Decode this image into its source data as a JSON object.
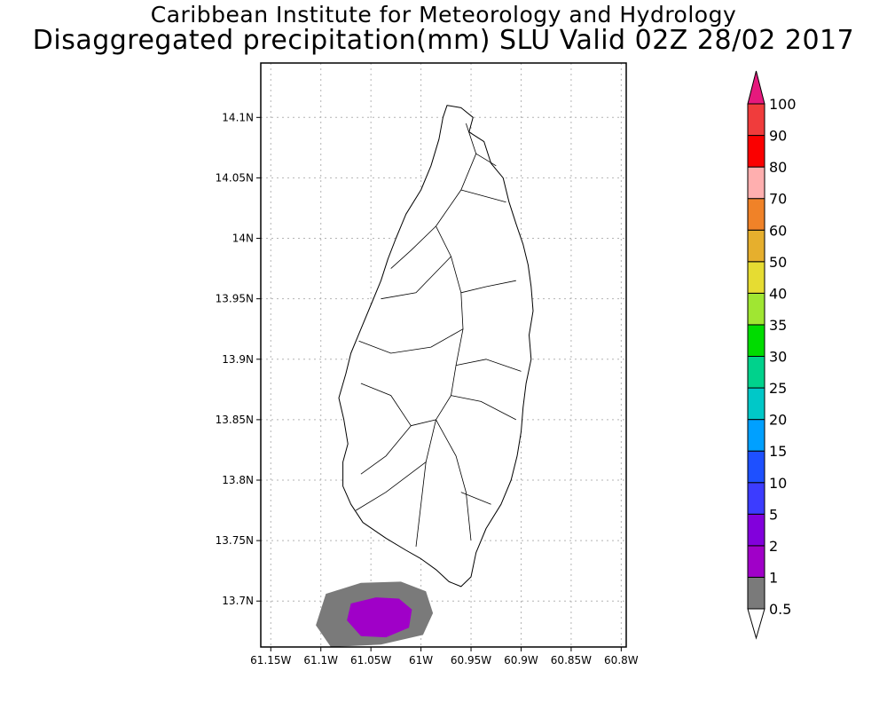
{
  "header": {
    "title_line1": "Caribbean Institute for Meteorology and Hydrology",
    "title_line2": "Disaggregated precipitation(mm) SLU Valid 02Z 28/02 2017"
  },
  "map": {
    "lon_range": [
      -61.16,
      -60.795
    ],
    "lat_range": [
      13.662,
      14.145
    ],
    "lat_ticks": [
      {
        "value": 14.1,
        "label": "14.1N"
      },
      {
        "value": 14.05,
        "label": "14.05N"
      },
      {
        "value": 14.0,
        "label": "14N"
      },
      {
        "value": 13.95,
        "label": "13.95N"
      },
      {
        "value": 13.9,
        "label": "13.9N"
      },
      {
        "value": 13.85,
        "label": "13.85N"
      },
      {
        "value": 13.8,
        "label": "13.8N"
      },
      {
        "value": 13.75,
        "label": "13.75N"
      },
      {
        "value": 13.7,
        "label": "13.7N"
      }
    ],
    "lon_ticks": [
      {
        "value": -61.15,
        "label": "61.15W"
      },
      {
        "value": -61.1,
        "label": "61.1W"
      },
      {
        "value": -61.05,
        "label": "61.05W"
      },
      {
        "value": -61.0,
        "label": "61W"
      },
      {
        "value": -60.95,
        "label": "60.95W"
      },
      {
        "value": -60.9,
        "label": "60.9W"
      },
      {
        "value": -60.85,
        "label": "60.85W"
      },
      {
        "value": -60.8,
        "label": "60.8W"
      }
    ],
    "grid": "dotted",
    "island_outline": [
      [
        -60.974,
        14.11
      ],
      [
        -60.96,
        14.108
      ],
      [
        -60.948,
        14.1
      ],
      [
        -60.952,
        14.088
      ],
      [
        -60.937,
        14.08
      ],
      [
        -60.93,
        14.062
      ],
      [
        -60.918,
        14.05
      ],
      [
        -60.912,
        14.03
      ],
      [
        -60.905,
        14.012
      ],
      [
        -60.898,
        13.995
      ],
      [
        -60.893,
        13.978
      ],
      [
        -60.89,
        13.96
      ],
      [
        -60.888,
        13.94
      ],
      [
        -60.892,
        13.92
      ],
      [
        -60.89,
        13.9
      ],
      [
        -60.895,
        13.88
      ],
      [
        -60.898,
        13.86
      ],
      [
        -60.9,
        13.84
      ],
      [
        -60.904,
        13.82
      ],
      [
        -60.91,
        13.8
      ],
      [
        -60.92,
        13.78
      ],
      [
        -60.935,
        13.76
      ],
      [
        -60.945,
        13.74
      ],
      [
        -60.95,
        13.72
      ],
      [
        -60.96,
        13.712
      ],
      [
        -60.972,
        13.716
      ],
      [
        -60.985,
        13.726
      ],
      [
        -61.0,
        13.735
      ],
      [
        -61.015,
        13.742
      ],
      [
        -61.035,
        13.752
      ],
      [
        -61.058,
        13.765
      ],
      [
        -61.07,
        13.78
      ],
      [
        -61.078,
        13.795
      ],
      [
        -61.078,
        13.815
      ],
      [
        -61.073,
        13.83
      ],
      [
        -61.077,
        13.85
      ],
      [
        -61.082,
        13.868
      ],
      [
        -61.075,
        13.888
      ],
      [
        -61.07,
        13.905
      ],
      [
        -61.06,
        13.925
      ],
      [
        -61.05,
        13.945
      ],
      [
        -61.04,
        13.965
      ],
      [
        -61.033,
        13.983
      ],
      [
        -61.025,
        14.0
      ],
      [
        -61.015,
        14.02
      ],
      [
        -61.0,
        14.04
      ],
      [
        -60.99,
        14.06
      ],
      [
        -60.982,
        14.082
      ],
      [
        -60.978,
        14.1
      ]
    ],
    "precip_areas": [
      {
        "class": "0.5-1",
        "color": "#7a7a7a",
        "outline": [
          [
            -61.095,
            13.706
          ],
          [
            -61.06,
            13.715
          ],
          [
            -61.02,
            13.716
          ],
          [
            -60.995,
            13.708
          ],
          [
            -60.988,
            13.69
          ],
          [
            -60.998,
            13.672
          ],
          [
            -61.04,
            13.664
          ],
          [
            -61.09,
            13.662
          ],
          [
            -61.105,
            13.68
          ]
        ]
      },
      {
        "class": "1-2",
        "color": "#a000c8",
        "outline": [
          [
            -61.07,
            13.698
          ],
          [
            -61.045,
            13.703
          ],
          [
            -61.022,
            13.702
          ],
          [
            -61.009,
            13.693
          ],
          [
            -61.012,
            13.678
          ],
          [
            -61.035,
            13.67
          ],
          [
            -61.06,
            13.671
          ],
          [
            -61.074,
            13.684
          ]
        ]
      }
    ]
  },
  "colorbar": {
    "levels": [
      {
        "label": "0.5",
        "color": "#ffffff"
      },
      {
        "label": "1",
        "color": "#7a7a7a"
      },
      {
        "label": "2",
        "color": "#a000c8"
      },
      {
        "label": "5",
        "color": "#8200dc"
      },
      {
        "label": "10",
        "color": "#3c3cff"
      },
      {
        "label": "15",
        "color": "#1e50ff"
      },
      {
        "label": "20",
        "color": "#00a0ff"
      },
      {
        "label": "25",
        "color": "#00c8c8"
      },
      {
        "label": "30",
        "color": "#00d28c"
      },
      {
        "label": "35",
        "color": "#00dc00"
      },
      {
        "label": "40",
        "color": "#a0e632"
      },
      {
        "label": "50",
        "color": "#e6dc32"
      },
      {
        "label": "60",
        "color": "#e6af2d"
      },
      {
        "label": "70",
        "color": "#f08228"
      },
      {
        "label": "80",
        "color": "#ffafaf"
      },
      {
        "label": "90",
        "color": "#fa0000"
      },
      {
        "label": "100",
        "color": "#f03c3c"
      }
    ],
    "top_arrow_color": "#e6197d",
    "bottom_arrow_color": "#ffffff"
  }
}
